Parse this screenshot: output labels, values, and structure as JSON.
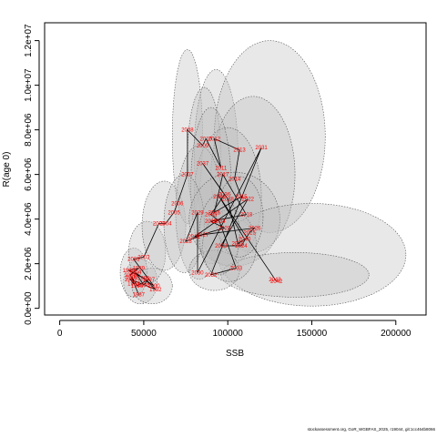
{
  "chart_data": {
    "type": "scatter",
    "xlabel": "SSB",
    "ylabel": "R(age 0)",
    "xlim": [
      -9000,
      218000
    ],
    "ylim": [
      -300000,
      12800000
    ],
    "x_ticks": [
      0,
      50000,
      100000,
      150000,
      200000
    ],
    "x_tick_labels": [
      "0",
      "50000",
      "100000",
      "150000",
      "200000"
    ],
    "y_ticks": [
      0,
      2000000,
      4000000,
      6000000,
      8000000,
      10000000,
      12000000
    ],
    "y_tick_labels": [
      "0.0e+00",
      "2.0e+06",
      "4.0e+06",
      "6.0e+06",
      "8.0e+06",
      "1.0e+07",
      "1.2e+07"
    ],
    "grid": false,
    "legend": "none",
    "colors": {
      "points": "#ff0000",
      "path": "#000000",
      "ellipse_fill": "#bebebe",
      "ellipse_edge": "#555555"
    },
    "points": [
      {
        "year": "1987",
        "ssb": 47000,
        "rec": 620000
      },
      {
        "year": "1988",
        "ssb": 42000,
        "rec": 1500000
      },
      {
        "year": "1989",
        "ssb": 47000,
        "rec": 1800000
      },
      {
        "year": "1990",
        "ssb": 41000,
        "rec": 1700000
      },
      {
        "year": "1991",
        "ssb": 50000,
        "rec": 1350000
      },
      {
        "year": "1992",
        "ssb": 57000,
        "rec": 850000
      },
      {
        "year": "1993",
        "ssb": 42000,
        "rec": 1300000
      },
      {
        "year": "1994",
        "ssb": 44000,
        "rec": 1100000
      },
      {
        "year": "1995",
        "ssb": 43000,
        "rec": 1400000
      },
      {
        "year": "1996",
        "ssb": 46000,
        "rec": 1000000
      },
      {
        "year": "1997",
        "ssb": 53000,
        "rec": 1300000
      },
      {
        "year": "1998",
        "ssb": 50000,
        "rec": 1050000
      },
      {
        "year": "1999",
        "ssb": 45000,
        "rec": 1600000
      },
      {
        "year": "2000",
        "ssb": 56000,
        "rec": 1000000
      },
      {
        "year": "2001",
        "ssb": 44000,
        "rec": 2200000
      },
      {
        "year": "2002",
        "ssb": 50000,
        "rec": 2300000
      },
      {
        "year": "2003",
        "ssb": 59000,
        "rec": 3800000
      },
      {
        "year": "2004",
        "ssb": 63000,
        "rec": 3800000
      },
      {
        "year": "2005",
        "ssb": 68000,
        "rec": 4300000
      },
      {
        "year": "2006",
        "ssb": 70000,
        "rec": 4700000
      },
      {
        "year": "2007",
        "ssb": 76000,
        "rec": 6000000
      },
      {
        "year": "2008",
        "ssb": 76000,
        "rec": 8000000
      },
      {
        "year": "2009",
        "ssb": 85000,
        "rec": 7300000
      },
      {
        "year": "2010",
        "ssb": 87000,
        "rec": 7600000
      },
      {
        "year": "2011",
        "ssb": 96000,
        "rec": 6300000
      },
      {
        "year": "2012",
        "ssb": 92000,
        "rec": 7600000
      },
      {
        "year": "2013",
        "ssb": 107000,
        "rec": 7100000
      },
      {
        "year": "2014",
        "ssb": 104000,
        "rec": 5800000
      },
      {
        "year": "2015",
        "ssb": 108000,
        "rec": 5000000
      },
      {
        "year": "2016",
        "ssb": 92000,
        "rec": 4300000
      },
      {
        "year": "2017",
        "ssb": 97000,
        "rec": 6000000
      },
      {
        "year": "2018",
        "ssb": 111000,
        "rec": 4200000
      },
      {
        "year": "2019",
        "ssb": 90000,
        "rec": 3900000
      },
      {
        "year": "2020",
        "ssb": 98000,
        "rec": 3600000
      },
      {
        "year": "2021",
        "ssb": 80000,
        "rec": 3200000
      },
      {
        "year": "2022",
        "ssb": 112000,
        "rec": 4900000
      },
      {
        "year": "2023",
        "ssb": 96000,
        "rec": 2800000
      },
      {
        "year": "2024",
        "ssb": 108000,
        "rec": 2800000
      },
      {
        "year": "2025",
        "ssb": 113000,
        "rec": 3400000
      },
      {
        "year": "2026",
        "ssb": 116000,
        "rec": 3600000
      },
      {
        "year": "2027",
        "ssb": 85000,
        "rec": 3300000
      },
      {
        "year": "2028",
        "ssb": 75000,
        "rec": 3000000
      },
      {
        "year": "2029",
        "ssb": 82000,
        "rec": 4300000
      },
      {
        "year": "2030",
        "ssb": 82000,
        "rec": 1600000
      },
      {
        "year": "2031",
        "ssb": 120000,
        "rec": 7200000
      },
      {
        "year": "2032",
        "ssb": 90000,
        "rec": 1500000
      },
      {
        "year": "2033",
        "ssb": 105000,
        "rec": 1800000
      },
      {
        "year": "2034",
        "ssb": 95000,
        "rec": 3900000
      },
      {
        "year": "2035",
        "ssb": 90000,
        "rec": 4200000
      },
      {
        "year": "2036",
        "ssb": 98000,
        "rec": 5100000
      },
      {
        "year": "2037",
        "ssb": 85000,
        "rec": 6500000
      },
      {
        "year": "2038",
        "ssb": 100000,
        "rec": 4900000
      },
      {
        "year": "2039",
        "ssb": 106000,
        "rec": 2900000
      },
      {
        "year": "2040",
        "ssb": 110000,
        "rec": 3100000
      },
      {
        "year": "2041",
        "ssb": 95000,
        "rec": 5000000
      },
      {
        "year": "2042",
        "ssb": 129000,
        "rec": 1200000
      },
      {
        "year": "2043",
        "ssb": 128000,
        "rec": 1300000
      }
    ],
    "ellipses": [
      {
        "cx": 48000,
        "cy": 1200000,
        "rx": 10000,
        "ry": 1000000
      },
      {
        "cx": 44000,
        "cy": 1600000,
        "rx": 8000,
        "ry": 1100000
      },
      {
        "cx": 55000,
        "cy": 1000000,
        "rx": 12000,
        "ry": 800000
      },
      {
        "cx": 52000,
        "cy": 2500000,
        "rx": 11000,
        "ry": 1400000
      },
      {
        "cx": 62000,
        "cy": 3700000,
        "rx": 13000,
        "ry": 2000000
      },
      {
        "cx": 76000,
        "cy": 7700000,
        "rx": 9000,
        "ry": 3900000
      },
      {
        "cx": 93000,
        "cy": 7000000,
        "rx": 13000,
        "ry": 3700000
      },
      {
        "cx": 86000,
        "cy": 6800000,
        "rx": 10000,
        "ry": 3100000
      },
      {
        "cx": 125000,
        "cy": 7700000,
        "rx": 33000,
        "ry": 4300000
      },
      {
        "cx": 115000,
        "cy": 6000000,
        "rx": 25000,
        "ry": 3500000
      },
      {
        "cx": 100000,
        "cy": 5000000,
        "rx": 20000,
        "ry": 3100000
      },
      {
        "cx": 83000,
        "cy": 4300000,
        "rx": 14000,
        "ry": 3000000
      },
      {
        "cx": 90000,
        "cy": 5500000,
        "rx": 12000,
        "ry": 3500000
      },
      {
        "cx": 74000,
        "cy": 3800000,
        "rx": 12000,
        "ry": 2200000
      },
      {
        "cx": 104000,
        "cy": 4000000,
        "rx": 27000,
        "ry": 2100000
      },
      {
        "cx": 150000,
        "cy": 2400000,
        "rx": 56000,
        "ry": 2300000
      },
      {
        "cx": 140000,
        "cy": 1500000,
        "rx": 44000,
        "ry": 1000000
      },
      {
        "cx": 92000,
        "cy": 1700000,
        "rx": 15000,
        "ry": 900000
      },
      {
        "cx": 101000,
        "cy": 2800000,
        "rx": 16000,
        "ry": 1600000
      },
      {
        "cx": 107000,
        "cy": 4100000,
        "rx": 14000,
        "ry": 1800000
      },
      {
        "cx": 95000,
        "cy": 3300000,
        "rx": 12000,
        "ry": 1800000
      }
    ]
  },
  "footer": "stockassessment.org, GoR_WGBFAS_2025, r19044, git:1cc464b8066"
}
